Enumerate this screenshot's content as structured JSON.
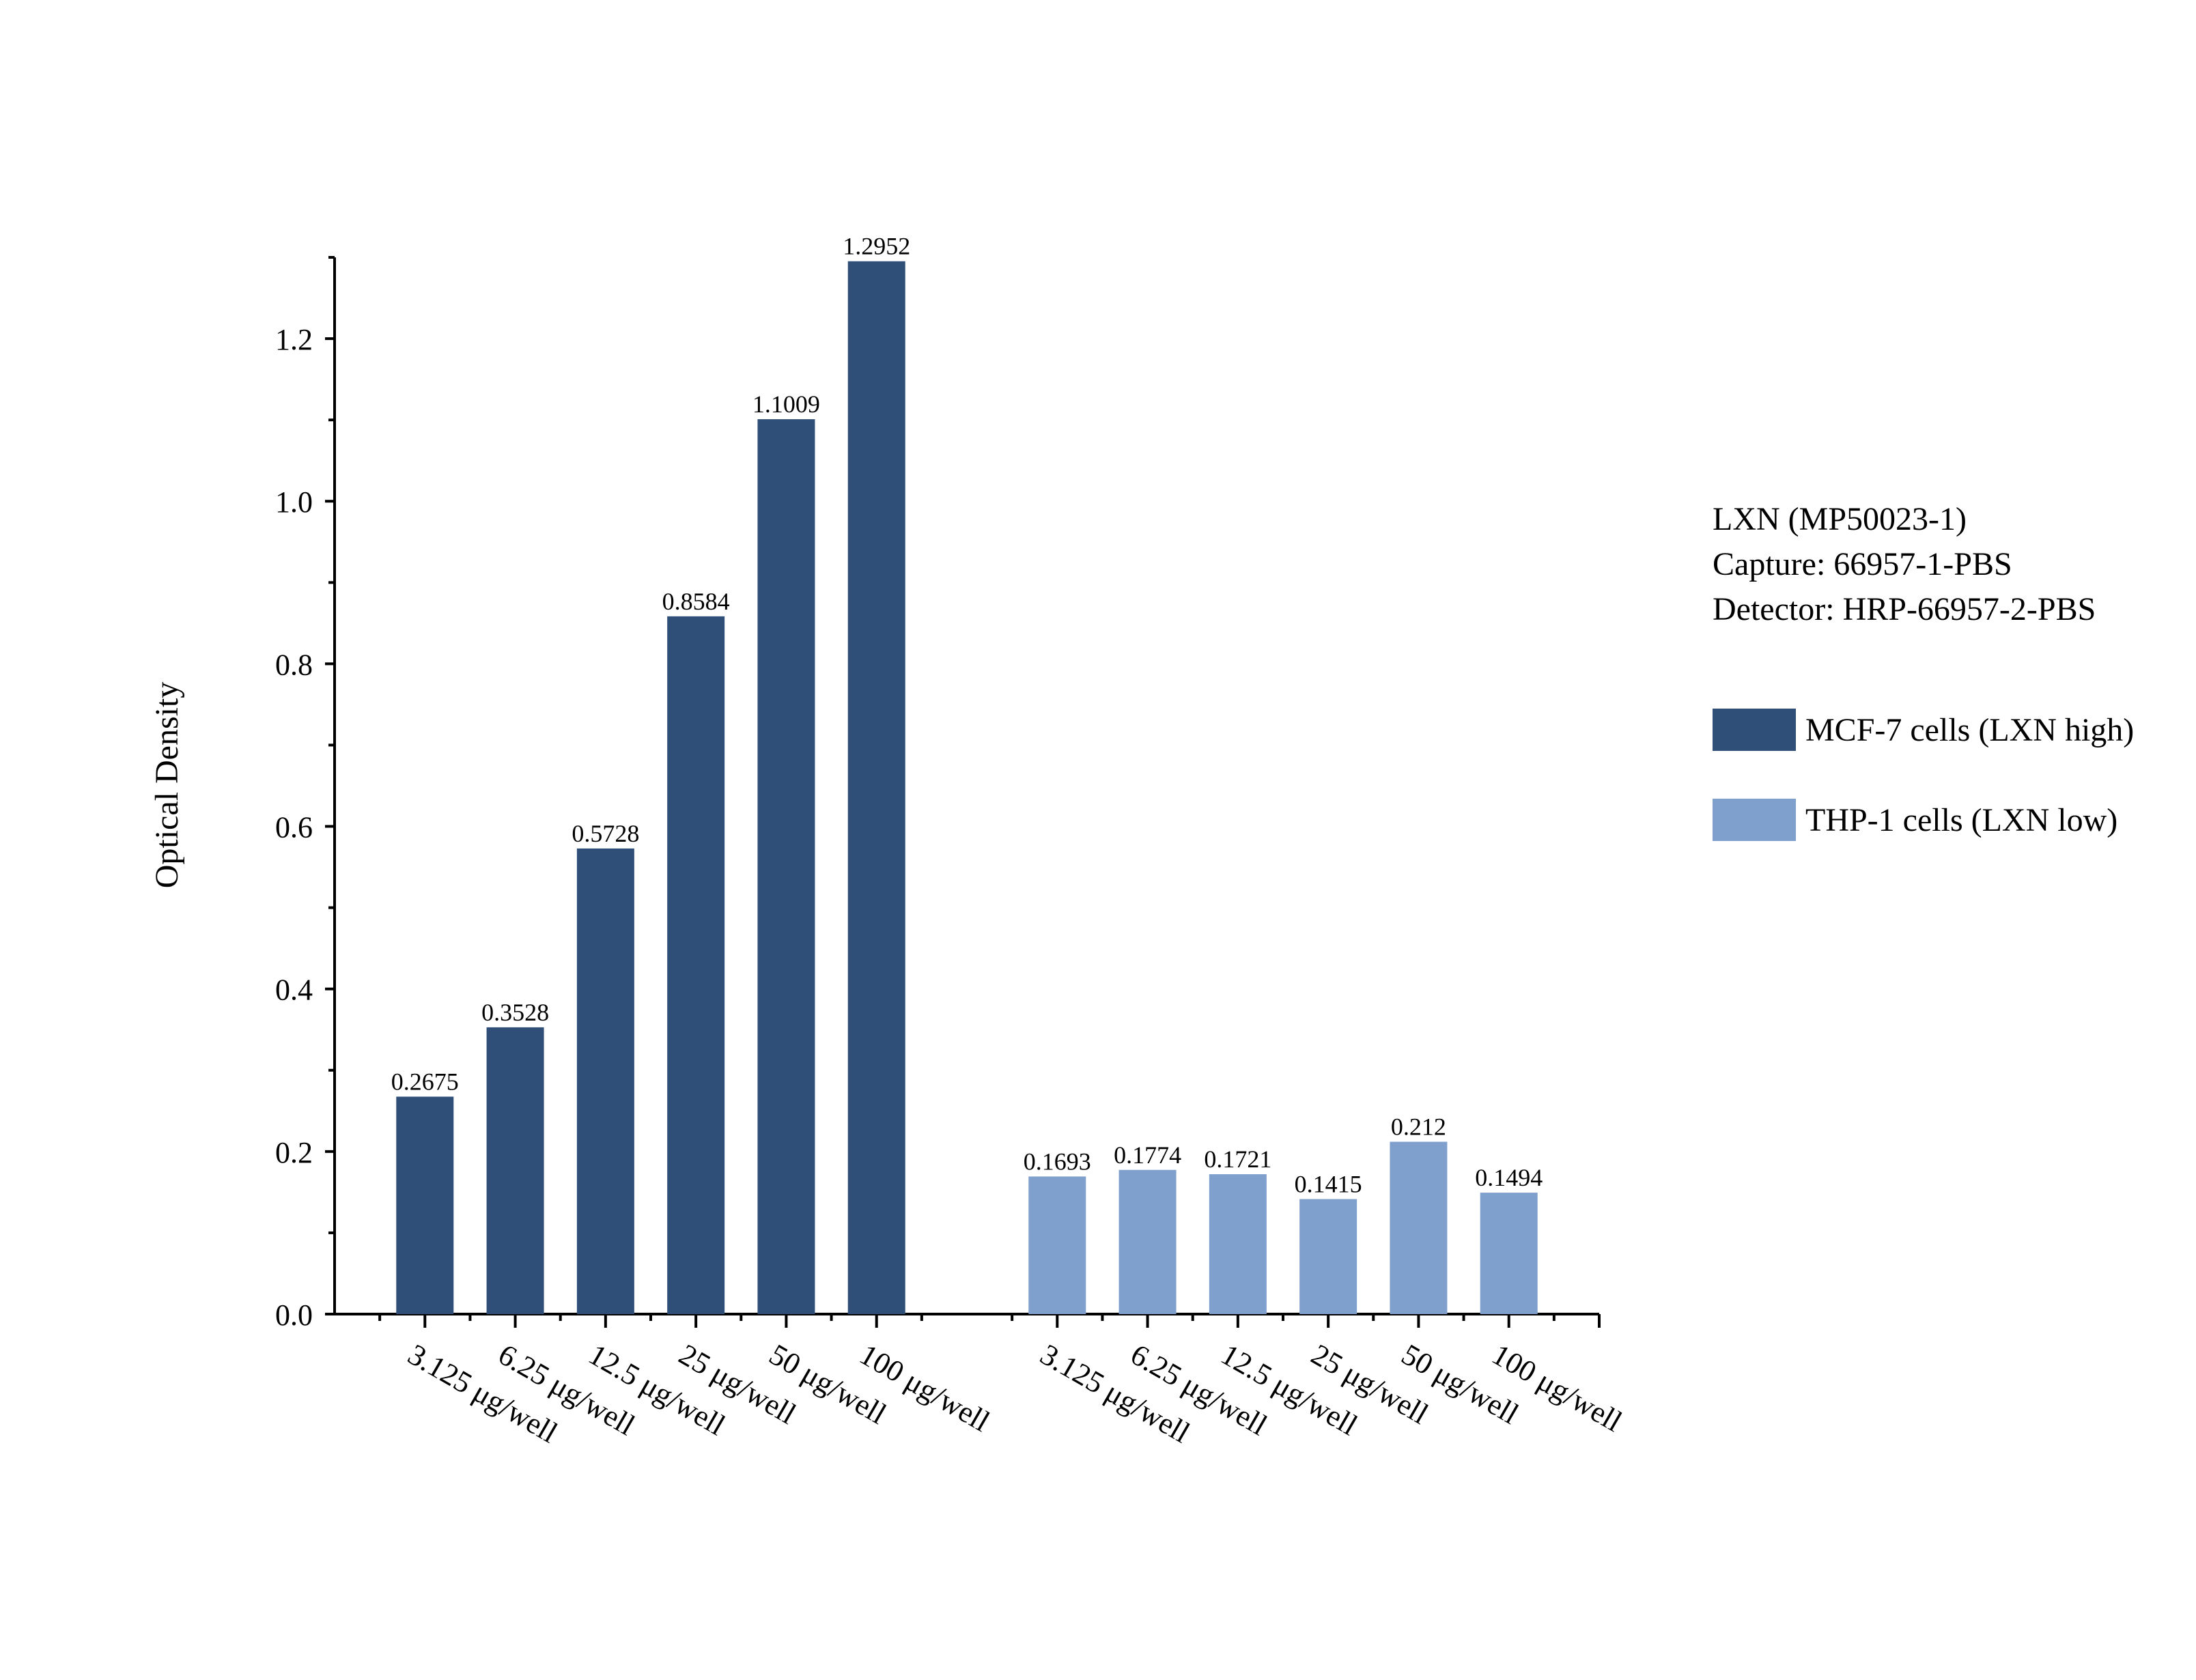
{
  "chart_data": {
    "type": "bar",
    "title": "",
    "xlabel": "",
    "ylabel": "Optical Density",
    "ylim": [
      0,
      1.3
    ],
    "yticks": [
      "0.0",
      "0.2",
      "0.4",
      "0.6",
      "0.8",
      "1.0",
      "1.2"
    ],
    "grid": false,
    "legend_position": "right",
    "groups": [
      {
        "name": "MCF-7 cells (LXN high)",
        "color": "#2f4f78",
        "categories": [
          "3.125 μg/well",
          "6.25 μg/well",
          "12.5 μg/well",
          "25 μg/well",
          "50 μg/well",
          "100 μg/well"
        ],
        "values": [
          0.2675,
          0.3528,
          0.5728,
          0.8584,
          1.1009,
          1.2952
        ],
        "labels": [
          "0.2675",
          "0.3528",
          "0.5728",
          "0.8584",
          "1.1009",
          "1.2952"
        ]
      },
      {
        "name": "THP-1 cells (LXN low)",
        "color": "#7f9fcd",
        "categories": [
          "3.125 μg/well",
          "6.25 μg/well",
          "12.5 μg/well",
          "25 μg/well",
          "50 μg/well",
          "100 μg/well"
        ],
        "values": [
          0.1693,
          0.1774,
          0.1721,
          0.1415,
          0.212,
          0.1494
        ],
        "labels": [
          "0.1693",
          "0.1774",
          "0.1721",
          "0.1415",
          "0.212",
          "0.1494"
        ]
      }
    ],
    "annotation": [
      "LXN (MP50023-1)",
      "Capture: 66957-1-PBS",
      "Detector: HRP-66957-2-PBS"
    ]
  }
}
